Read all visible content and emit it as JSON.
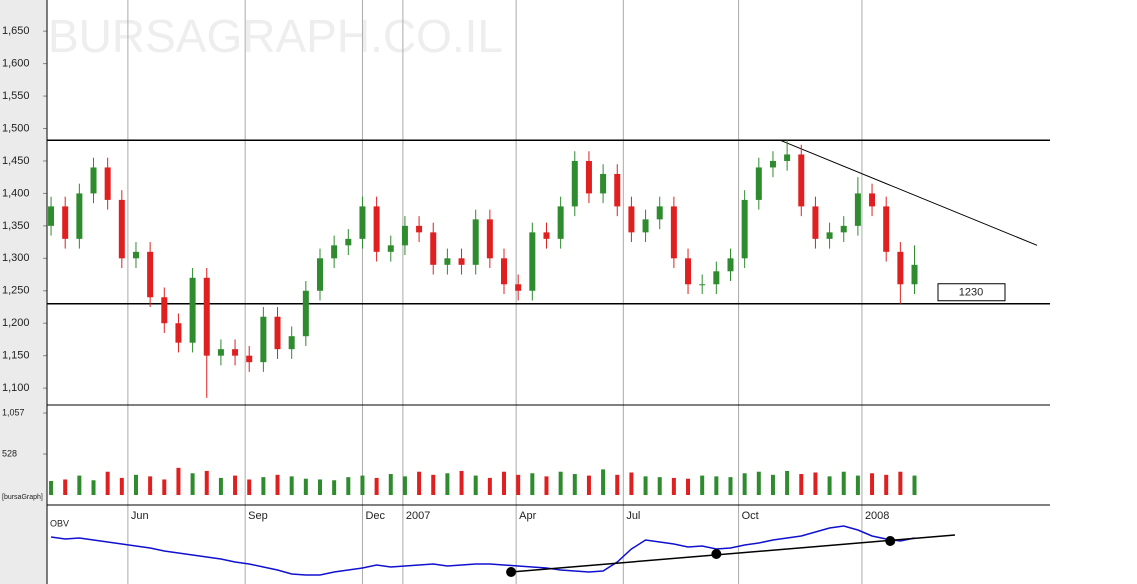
{
  "chart_data": {
    "type": "candlestick",
    "watermark": "BURSAGRAPH.CO.IL",
    "source_label": "[bursaGraph]",
    "x": [
      2,
      9,
      16,
      23,
      30,
      37,
      44,
      51,
      58,
      65,
      72,
      79,
      86,
      93,
      100,
      107,
      114,
      121,
      128,
      135,
      142,
      149,
      156,
      163,
      170,
      177,
      184,
      191,
      198,
      205,
      212,
      219,
      226,
      233,
      240,
      247,
      254,
      261,
      268,
      275,
      282,
      289,
      296,
      303,
      310,
      317,
      324,
      331,
      338,
      345,
      352,
      359,
      366,
      373,
      380,
      387,
      394,
      401,
      408,
      415,
      422,
      429
    ],
    "open": [
      1350,
      1380,
      1330,
      1400,
      1440,
      1390,
      1300,
      1310,
      1240,
      1200,
      1170,
      1270,
      1150,
      1160,
      1150,
      1140,
      1210,
      1160,
      1180,
      1250,
      1300,
      1320,
      1330,
      1380,
      1310,
      1320,
      1350,
      1340,
      1290,
      1300,
      1290,
      1360,
      1300,
      1260,
      1250,
      1340,
      1330,
      1380,
      1450,
      1400,
      1430,
      1380,
      1340,
      1360,
      1380,
      1300,
      1260,
      1260,
      1280,
      1300,
      1390,
      1440,
      1450,
      1460,
      1380,
      1330,
      1340,
      1350,
      1400,
      1380,
      1310,
      1260
    ],
    "high": [
      1395,
      1395,
      1415,
      1455,
      1455,
      1405,
      1325,
      1325,
      1255,
      1215,
      1285,
      1285,
      1175,
      1175,
      1165,
      1225,
      1225,
      1195,
      1265,
      1315,
      1335,
      1345,
      1395,
      1395,
      1335,
      1365,
      1365,
      1355,
      1315,
      1315,
      1375,
      1375,
      1315,
      1275,
      1355,
      1355,
      1395,
      1465,
      1465,
      1445,
      1445,
      1395,
      1375,
      1395,
      1395,
      1315,
      1275,
      1295,
      1315,
      1405,
      1455,
      1465,
      1482,
      1475,
      1395,
      1355,
      1365,
      1425,
      1415,
      1395,
      1325,
      1320
    ],
    "low": [
      1335,
      1315,
      1315,
      1385,
      1375,
      1285,
      1285,
      1225,
      1185,
      1155,
      1155,
      1085,
      1135,
      1135,
      1125,
      1125,
      1145,
      1145,
      1165,
      1235,
      1285,
      1305,
      1315,
      1295,
      1295,
      1305,
      1325,
      1275,
      1275,
      1275,
      1275,
      1285,
      1245,
      1235,
      1235,
      1315,
      1315,
      1365,
      1385,
      1385,
      1365,
      1325,
      1325,
      1345,
      1285,
      1245,
      1245,
      1245,
      1265,
      1285,
      1375,
      1425,
      1435,
      1365,
      1315,
      1315,
      1325,
      1335,
      1365,
      1295,
      1230,
      1245
    ],
    "close": [
      1380,
      1330,
      1400,
      1440,
      1390,
      1300,
      1310,
      1240,
      1200,
      1170,
      1270,
      1150,
      1160,
      1150,
      1140,
      1210,
      1160,
      1180,
      1250,
      1300,
      1320,
      1330,
      1380,
      1310,
      1320,
      1350,
      1340,
      1290,
      1300,
      1290,
      1360,
      1300,
      1260,
      1250,
      1340,
      1330,
      1380,
      1450,
      1400,
      1430,
      1380,
      1340,
      1360,
      1380,
      1300,
      1260,
      1260,
      1280,
      1300,
      1390,
      1440,
      1450,
      1460,
      1380,
      1330,
      1340,
      1350,
      1400,
      1380,
      1310,
      1260,
      1290
    ],
    "up_color": "#2e8b2e",
    "down_color": "#e02020",
    "xlim": [
      0,
      496
    ],
    "xticks": [
      {
        "value": 40,
        "label": "Jun"
      },
      {
        "value": 98,
        "label": "Sep"
      },
      {
        "value": 156,
        "label": "Dec"
      },
      {
        "value": 176,
        "label": "2007"
      },
      {
        "value": 232,
        "label": "Apr"
      },
      {
        "value": 285,
        "label": "Jul"
      },
      {
        "value": 342,
        "label": "Oct"
      },
      {
        "value": 403,
        "label": "2008"
      }
    ],
    "ylim": [
      1074,
      1698
    ],
    "yticks": [
      {
        "value": 1100,
        "label": "1,100"
      },
      {
        "value": 1150,
        "label": "1,150"
      },
      {
        "value": 1200,
        "label": "1,200"
      },
      {
        "value": 1250,
        "label": "1,250"
      },
      {
        "value": 1300,
        "label": "1,300"
      },
      {
        "value": 1350,
        "label": "1,350"
      },
      {
        "value": 1400,
        "label": "1,400"
      },
      {
        "value": 1450,
        "label": "1,450"
      },
      {
        "value": 1500,
        "label": "1,500"
      },
      {
        "value": 1550,
        "label": "1,550"
      },
      {
        "value": 1600,
        "label": "1,600"
      },
      {
        "value": 1650,
        "label": "1,650"
      }
    ],
    "resistance": 1482,
    "support": 1230,
    "trendline": {
      "x": [
        362.5,
        489.6
      ],
      "values": [
        1482,
        1320
      ]
    },
    "volume": {
      "values": [
        180,
        200,
        250,
        190,
        300,
        220,
        260,
        240,
        200,
        350,
        280,
        310,
        220,
        250,
        200,
        230,
        260,
        240,
        210,
        200,
        190,
        230,
        250,
        220,
        270,
        240,
        300,
        260,
        280,
        310,
        250,
        220,
        300,
        260,
        280,
        240,
        300,
        270,
        250,
        330,
        260,
        290,
        240,
        230,
        220,
        210,
        250,
        240,
        230,
        280,
        300,
        260,
        310,
        270,
        290,
        240,
        300,
        250,
        280,
        260,
        300,
        250
      ],
      "ylim": [
        -129,
        1160
      ],
      "yticks": [
        {
          "value": 528,
          "label": "528"
        },
        {
          "value": 1057,
          "label": "1,057"
        }
      ]
    },
    "obv": {
      "label": "OBV",
      "color": "#1010d0",
      "ylim": [
        0,
        79
      ],
      "values": [
        47,
        45,
        46,
        44,
        42,
        40,
        38,
        36,
        33,
        31,
        29,
        27,
        25,
        22,
        20,
        17,
        14,
        10,
        9,
        9,
        12,
        14,
        16,
        19,
        17,
        18,
        19,
        20,
        18,
        19,
        20,
        20,
        19,
        18,
        17,
        16,
        14,
        13,
        12,
        13,
        22,
        35,
        44,
        42,
        40,
        37,
        38,
        35,
        36,
        39,
        41,
        44,
        46,
        48,
        52,
        56,
        58,
        54,
        48,
        45,
        43,
        46
      ],
      "trendline": {
        "x": [
          229.5,
          449
        ],
        "values": [
          12,
          49
        ]
      },
      "touch_points": {
        "x": [
          229.5,
          331,
          417
        ],
        "values": [
          12,
          30,
          43
        ]
      }
    }
  }
}
